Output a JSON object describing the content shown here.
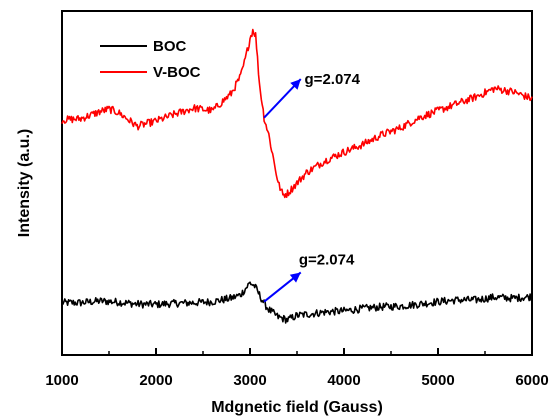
{
  "chart_data": {
    "type": "line",
    "xlabel": "Mdgnetic field (Gauss)",
    "ylabel": "Intensity (a.u.)",
    "xlim": [
      1000,
      6000
    ],
    "ylim": [
      0,
      1
    ],
    "x_ticks": [
      "1000",
      "2000",
      "3000",
      "4000",
      "5000",
      "6000"
    ],
    "y_ticks": [],
    "grid": false,
    "legend_position": "top-left",
    "series": [
      {
        "name": "BOC",
        "color": "#000000",
        "x": [
          1000,
          1200,
          1400,
          1600,
          1800,
          2000,
          2200,
          2400,
          2600,
          2800,
          2900,
          2950,
          3000,
          3050,
          3100,
          3150,
          3200,
          3300,
          3400,
          3500,
          3600,
          3800,
          4000,
          4200,
          4400,
          4600,
          4800,
          5000,
          5200,
          5400,
          5600,
          5800,
          6000
        ],
        "y": [
          0.152,
          0.152,
          0.157,
          0.154,
          0.148,
          0.147,
          0.15,
          0.152,
          0.155,
          0.165,
          0.175,
          0.192,
          0.21,
          0.2,
          0.175,
          0.15,
          0.132,
          0.11,
          0.102,
          0.115,
          0.118,
          0.125,
          0.128,
          0.135,
          0.14,
          0.142,
          0.148,
          0.155,
          0.16,
          0.16,
          0.168,
          0.165,
          0.17
        ]
      },
      {
        "name": "V-BOC",
        "color": "#ff0000",
        "x": [
          1000,
          1200,
          1400,
          1500,
          1600,
          1800,
          2000,
          2200,
          2400,
          2600,
          2800,
          2900,
          2950,
          3000,
          3030,
          3060,
          3100,
          3150,
          3200,
          3300,
          3350,
          3400,
          3500,
          3600,
          3800,
          4000,
          4200,
          4400,
          4600,
          4800,
          5000,
          5200,
          5400,
          5600,
          5800,
          6000
        ],
        "y": [
          0.683,
          0.687,
          0.707,
          0.715,
          0.705,
          0.665,
          0.68,
          0.7,
          0.718,
          0.71,
          0.76,
          0.81,
          0.86,
          0.92,
          0.945,
          0.93,
          0.79,
          0.69,
          0.64,
          0.5,
          0.465,
          0.47,
          0.5,
          0.53,
          0.565,
          0.59,
          0.612,
          0.64,
          0.66,
          0.69,
          0.71,
          0.73,
          0.75,
          0.775,
          0.765,
          0.745
        ]
      }
    ],
    "annotations": [
      {
        "text": "g=2.074",
        "arrow_color": "#0000ff",
        "from": [
          3150,
          0.69
        ],
        "to": [
          3540,
          0.802
        ],
        "label_at": [
          3580,
          0.802
        ]
      },
      {
        "text": "g=2.074",
        "arrow_color": "#0000ff",
        "from": [
          3150,
          0.155
        ],
        "to": [
          3540,
          0.24
        ],
        "label_at": [
          3520,
          0.277
        ]
      }
    ]
  }
}
